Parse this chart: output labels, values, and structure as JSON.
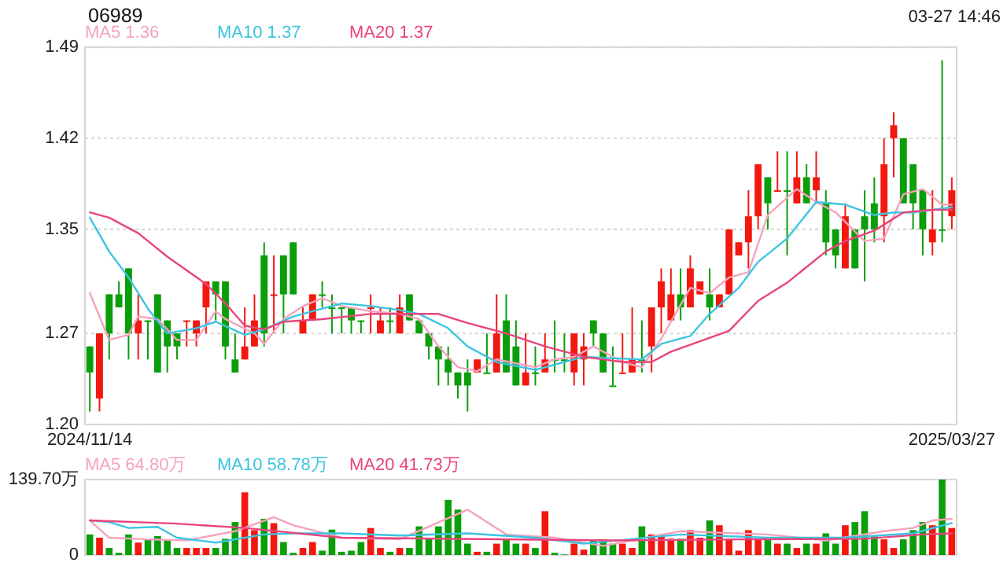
{
  "chart_data": [
    {
      "type": "candlestick",
      "title": "06989",
      "annotations": [
        "03-27 14:46"
      ],
      "legend": "top left",
      "grid": "y",
      "line_style": "solid",
      "categories": [
        "2024/11/14",
        null,
        null,
        null,
        null,
        null,
        null,
        null,
        null,
        null,
        null,
        null,
        null,
        null,
        null,
        null,
        null,
        null,
        null,
        null,
        null,
        null,
        null,
        null,
        null,
        null,
        null,
        null,
        null,
        null,
        null,
        null,
        null,
        null,
        null,
        null,
        null,
        null,
        null,
        null,
        null,
        null,
        null,
        null,
        null,
        null,
        null,
        null,
        null,
        null,
        null,
        null,
        null,
        null,
        null,
        null,
        null,
        null,
        null,
        null,
        null,
        null,
        null,
        null,
        null,
        null,
        null,
        null,
        null,
        null,
        null,
        null,
        null,
        null,
        null,
        null,
        null,
        null,
        null,
        null,
        null,
        null,
        null,
        null,
        null,
        null,
        null,
        null,
        null,
        "2025/03/27"
      ],
      "ohlc": [
        [
          1.26,
          1.26,
          1.21,
          1.24
        ],
        [
          1.22,
          1.27,
          1.21,
          1.27
        ],
        [
          1.3,
          1.3,
          1.25,
          1.27
        ],
        [
          1.3,
          1.31,
          1.29,
          1.29
        ],
        [
          1.32,
          1.32,
          1.25,
          1.27
        ],
        [
          1.27,
          1.3,
          1.25,
          1.28
        ],
        [
          1.28,
          1.28,
          1.25,
          1.28
        ],
        [
          1.3,
          1.3,
          1.24,
          1.24
        ],
        [
          1.28,
          1.28,
          1.24,
          1.26
        ],
        [
          1.27,
          1.27,
          1.25,
          1.26
        ],
        [
          1.28,
          1.28,
          1.26,
          1.28
        ],
        [
          1.27,
          1.28,
          1.26,
          1.28
        ],
        [
          1.29,
          1.31,
          1.27,
          1.31
        ],
        [
          1.31,
          1.31,
          1.28,
          1.3
        ],
        [
          1.31,
          1.31,
          1.25,
          1.26
        ],
        [
          1.25,
          1.27,
          1.24,
          1.24
        ],
        [
          1.25,
          1.29,
          1.25,
          1.26
        ],
        [
          1.26,
          1.3,
          1.26,
          1.28
        ],
        [
          1.33,
          1.34,
          1.26,
          1.27
        ],
        [
          1.3,
          1.33,
          1.27,
          1.3
        ],
        [
          1.33,
          1.33,
          1.27,
          1.3
        ],
        [
          1.34,
          1.34,
          1.3,
          1.3
        ],
        [
          1.27,
          1.29,
          1.27,
          1.28
        ],
        [
          1.28,
          1.3,
          1.28,
          1.3
        ],
        [
          1.3,
          1.31,
          1.29,
          1.3
        ],
        [
          1.29,
          1.3,
          1.27,
          1.29
        ],
        [
          1.29,
          1.29,
          1.27,
          1.29
        ],
        [
          1.29,
          1.29,
          1.27,
          1.28
        ],
        [
          1.28,
          1.28,
          1.27,
          1.28
        ],
        [
          1.29,
          1.3,
          1.27,
          1.29
        ],
        [
          1.27,
          1.29,
          1.27,
          1.28
        ],
        [
          1.28,
          1.29,
          1.27,
          1.28
        ],
        [
          1.27,
          1.3,
          1.27,
          1.29
        ],
        [
          1.3,
          1.3,
          1.28,
          1.28
        ],
        [
          1.28,
          1.28,
          1.27,
          1.27
        ],
        [
          1.27,
          1.27,
          1.25,
          1.26
        ],
        [
          1.26,
          1.26,
          1.23,
          1.25
        ],
        [
          1.25,
          1.26,
          1.23,
          1.24
        ],
        [
          1.24,
          1.24,
          1.22,
          1.23
        ],
        [
          1.24,
          1.25,
          1.21,
          1.23
        ],
        [
          1.24,
          1.25,
          1.24,
          1.25
        ],
        [
          1.24,
          1.27,
          1.24,
          1.24
        ],
        [
          1.24,
          1.3,
          1.24,
          1.27
        ],
        [
          1.28,
          1.3,
          1.24,
          1.24
        ],
        [
          1.26,
          1.28,
          1.23,
          1.23
        ],
        [
          1.23,
          1.27,
          1.23,
          1.24
        ],
        [
          1.24,
          1.26,
          1.23,
          1.24
        ],
        [
          1.24,
          1.27,
          1.24,
          1.25
        ],
        [
          1.25,
          1.28,
          1.24,
          1.25
        ],
        [
          1.25,
          1.27,
          1.24,
          1.25
        ],
        [
          1.24,
          1.27,
          1.23,
          1.27
        ],
        [
          1.25,
          1.27,
          1.23,
          1.26
        ],
        [
          1.28,
          1.28,
          1.26,
          1.27
        ],
        [
          1.27,
          1.27,
          1.24,
          1.24
        ],
        [
          1.23,
          1.26,
          1.23,
          1.23
        ],
        [
          1.24,
          1.27,
          1.24,
          1.24
        ],
        [
          1.24,
          1.29,
          1.24,
          1.25
        ],
        [
          1.25,
          1.28,
          1.24,
          1.25
        ],
        [
          1.26,
          1.29,
          1.24,
          1.29
        ],
        [
          1.29,
          1.32,
          1.27,
          1.31
        ],
        [
          1.28,
          1.32,
          1.28,
          1.3
        ],
        [
          1.3,
          1.32,
          1.28,
          1.29
        ],
        [
          1.29,
          1.33,
          1.29,
          1.32
        ],
        [
          1.3,
          1.31,
          1.3,
          1.31
        ],
        [
          1.3,
          1.32,
          1.28,
          1.29
        ],
        [
          1.29,
          1.3,
          1.29,
          1.3
        ],
        [
          1.3,
          1.35,
          1.3,
          1.35
        ],
        [
          1.33,
          1.34,
          1.33,
          1.34
        ],
        [
          1.34,
          1.38,
          1.32,
          1.36
        ],
        [
          1.36,
          1.4,
          1.35,
          1.4
        ],
        [
          1.39,
          1.39,
          1.35,
          1.37
        ],
        [
          1.38,
          1.41,
          1.38,
          1.38
        ],
        [
          1.38,
          1.41,
          1.33,
          1.38
        ],
        [
          1.37,
          1.41,
          1.37,
          1.39
        ],
        [
          1.39,
          1.4,
          1.37,
          1.37
        ],
        [
          1.38,
          1.41,
          1.37,
          1.39
        ],
        [
          1.37,
          1.38,
          1.33,
          1.34
        ],
        [
          1.35,
          1.35,
          1.32,
          1.33
        ],
        [
          1.32,
          1.37,
          1.32,
          1.36
        ],
        [
          1.35,
          1.35,
          1.32,
          1.32
        ],
        [
          1.36,
          1.38,
          1.31,
          1.35
        ],
        [
          1.37,
          1.39,
          1.34,
          1.35
        ],
        [
          1.36,
          1.42,
          1.34,
          1.4
        ],
        [
          1.42,
          1.44,
          1.39,
          1.43
        ],
        [
          1.42,
          1.42,
          1.37,
          1.37
        ],
        [
          1.4,
          1.4,
          1.35,
          1.37
        ],
        [
          1.38,
          1.38,
          1.33,
          1.35
        ],
        [
          1.34,
          1.38,
          1.33,
          1.35
        ],
        [
          1.35,
          1.48,
          1.34,
          1.35
        ],
        [
          1.36,
          1.39,
          1.35,
          1.38
        ]
      ],
      "colors": [
        "#0a9e0a",
        "#f2180f",
        "#0a9e0a",
        "#0a9e0a",
        "#0a9e0a",
        "#f2180f",
        "#0a9e0a",
        "#0a9e0a",
        "#0a9e0a",
        "#0a9e0a",
        "#f2180f",
        "#f2180f",
        "#f2180f",
        "#0a9e0a",
        "#0a9e0a",
        "#0a9e0a",
        "#f2180f",
        "#f2180f",
        "#0a9e0a",
        "#f2180f",
        "#0a9e0a",
        "#0a9e0a",
        "#f2180f",
        "#f2180f",
        "#0a9e0a",
        "#0a9e0a",
        "#0a9e0a",
        "#0a9e0a",
        "#0a9e0a",
        "#f2180f",
        "#f2180f",
        "#0a9e0a",
        "#f2180f",
        "#0a9e0a",
        "#0a9e0a",
        "#0a9e0a",
        "#0a9e0a",
        "#0a9e0a",
        "#0a9e0a",
        "#0a9e0a",
        "#f2180f",
        "#0a9e0a",
        "#f2180f",
        "#0a9e0a",
        "#0a9e0a",
        "#f2180f",
        "#0a9e0a",
        "#f2180f",
        "#0a9e0a",
        "#0a9e0a",
        "#f2180f",
        "#f2180f",
        "#0a9e0a",
        "#0a9e0a",
        "#0a9e0a",
        "#f2180f",
        "#f2180f",
        "#0a9e0a",
        "#f2180f",
        "#f2180f",
        "#f2180f",
        "#0a9e0a",
        "#f2180f",
        "#f2180f",
        "#0a9e0a",
        "#f2180f",
        "#f2180f",
        "#f2180f",
        "#f2180f",
        "#f2180f",
        "#0a9e0a",
        "#f2180f",
        "#0a9e0a",
        "#f2180f",
        "#0a9e0a",
        "#f2180f",
        "#0a9e0a",
        "#0a9e0a",
        "#f2180f",
        "#0a9e0a",
        "#0a9e0a",
        "#0a9e0a",
        "#f2180f",
        "#f2180f",
        "#0a9e0a",
        "#0a9e0a",
        "#0a9e0a",
        "#f2180f",
        "#0a9e0a",
        "#f2180f"
      ],
      "series": [
        {
          "name": "MA5 1.36",
          "type": "line",
          "color": "#f5a3bd",
          "values": [
            1.301,
            null,
            1.265,
            null,
            1.269,
            1.283,
            null,
            1.281,
            null,
            1.265,
            null,
            1.265,
            null,
            1.287,
            1.281,
            null,
            null,
            1.27,
            1.262,
            null,
            1.281,
            null,
            1.291,
            null,
            1.297,
            null,
            1.291,
            null,
            null,
            1.287,
            null,
            null,
            1.285,
            null,
            1.281,
            null,
            1.26,
            null,
            1.244,
            null,
            1.241,
            null,
            1.25,
            null,
            null,
            null,
            1.244,
            null,
            1.25,
            null,
            1.252,
            null,
            1.26,
            null,
            null,
            1.248,
            null,
            1.244,
            null,
            1.266,
            null,
            null,
            1.305,
            null,
            1.301,
            null,
            1.313,
            null,
            1.317,
            null,
            1.361,
            null,
            null,
            1.381,
            null,
            1.371,
            null,
            1.363,
            null,
            null,
            1.341,
            null,
            1.343,
            null,
            1.377,
            null,
            1.381,
            null,
            1.369,
            1.369
          ]
        },
        {
          "name": "MA10 1.37",
          "type": "line",
          "color": "#3cc4e0",
          "values": [
            1.359,
            null,
            1.333,
            null,
            1.313,
            null,
            1.289,
            null,
            1.27,
            null,
            null,
            1.274,
            null,
            1.279,
            null,
            null,
            1.269,
            null,
            1.273,
            null,
            null,
            1.283,
            null,
            null,
            1.289,
            null,
            1.293,
            null,
            null,
            1.291,
            null,
            null,
            1.288,
            null,
            1.285,
            null,
            null,
            1.274,
            null,
            1.26,
            null,
            null,
            1.248,
            null,
            null,
            null,
            1.242,
            null,
            1.246,
            null,
            null,
            1.252,
            null,
            null,
            1.251,
            null,
            null,
            1.25,
            null,
            1.262,
            null,
            null,
            1.268,
            null,
            1.285,
            null,
            null,
            1.305,
            null,
            1.325,
            null,
            null,
            1.343,
            null,
            null,
            1.371,
            null,
            null,
            1.369,
            null,
            null,
            1.361,
            null,
            1.363,
            null,
            1.363,
            null,
            null,
            null,
            1.367
          ]
        },
        {
          "name": "MA20 1.37",
          "type": "line",
          "color": "#e8457d",
          "values": [
            1.363,
            null,
            1.359,
            null,
            null,
            1.347,
            null,
            null,
            1.329,
            null,
            null,
            null,
            1.308,
            null,
            1.293,
            null,
            1.276,
            null,
            1.273,
            null,
            1.279,
            null,
            null,
            null,
            1.281,
            null,
            null,
            null,
            null,
            1.285,
            null,
            null,
            null,
            null,
            null,
            null,
            1.285,
            null,
            null,
            1.278,
            null,
            null,
            null,
            1.27,
            null,
            null,
            null,
            1.26,
            null,
            null,
            null,
            1.252,
            null,
            null,
            null,
            1.248,
            null,
            null,
            1.248,
            null,
            1.256,
            null,
            null,
            1.264,
            null,
            null,
            1.272,
            null,
            null,
            1.295,
            null,
            null,
            1.309,
            null,
            null,
            null,
            1.333,
            null,
            1.341,
            null,
            null,
            1.349,
            null,
            null,
            1.363,
            null,
            null,
            1.365,
            null,
            1.365
          ]
        }
      ],
      "ylim": [
        1.2,
        1.49
      ],
      "yticks": [
        {
          "value": 1.2,
          "label": "1.20"
        },
        1.27,
        1.35,
        1.42,
        1.49
      ]
    },
    {
      "type": "bar",
      "legend": "top left",
      "grid": "y",
      "tick_labels": "y",
      "line_style": "solid",
      "categories": [
        null,
        null,
        null,
        null,
        null,
        null,
        null,
        null,
        null,
        null,
        null,
        null,
        null,
        null,
        null,
        null,
        null,
        null,
        null,
        null,
        null,
        null,
        null,
        null,
        null,
        null,
        null,
        null,
        null,
        null,
        null,
        null,
        null,
        null,
        null,
        null,
        null,
        null,
        null,
        null,
        null,
        null,
        null,
        null,
        null,
        null,
        null,
        null,
        null,
        null,
        null,
        null,
        null,
        null,
        null,
        null,
        null,
        null,
        null,
        null,
        null,
        null,
        null,
        null,
        null,
        null,
        null,
        null,
        null,
        null,
        null,
        null,
        null,
        null,
        null,
        null,
        null,
        null,
        null,
        null,
        null,
        null,
        null,
        null,
        null,
        null,
        null,
        null,
        null,
        null
      ],
      "series": [
        {
          "type": "bar",
          "values": [
            38,
            32,
            13,
            4,
            38,
            23,
            30,
            35,
            29,
            13,
            13,
            13,
            13,
            13,
            30,
            61,
            116,
            46,
            67,
            59,
            24,
            4,
            13,
            24,
            8,
            47,
            6,
            8,
            24,
            50,
            13,
            6,
            13,
            13,
            53,
            32,
            53,
            102,
            84,
            21,
            6,
            6,
            21,
            29,
            21,
            21,
            13,
            81,
            4,
            1,
            21,
            10,
            29,
            29,
            21,
            21,
            13,
            53,
            38,
            38,
            30,
            30,
            46,
            32,
            64,
            55,
            30,
            8,
            46,
            29,
            29,
            21,
            21,
            13,
            21,
            21,
            40,
            21,
            55,
            61,
            81,
            35,
            29,
            13,
            29,
            46,
            61,
            55,
            139.7,
            50
          ],
          "colors": [
            "#0a9e0a",
            "#f2180f",
            "#0a9e0a",
            "#0a9e0a",
            "#0a9e0a",
            "#f2180f",
            "#0a9e0a",
            "#0a9e0a",
            "#0a9e0a",
            "#0a9e0a",
            "#f2180f",
            "#f2180f",
            "#f2180f",
            "#0a9e0a",
            "#0a9e0a",
            "#0a9e0a",
            "#f2180f",
            "#f2180f",
            "#0a9e0a",
            "#f2180f",
            "#0a9e0a",
            "#0a9e0a",
            "#f2180f",
            "#f2180f",
            "#0a9e0a",
            "#0a9e0a",
            "#0a9e0a",
            "#0a9e0a",
            "#0a9e0a",
            "#f2180f",
            "#f2180f",
            "#0a9e0a",
            "#f2180f",
            "#0a9e0a",
            "#0a9e0a",
            "#0a9e0a",
            "#0a9e0a",
            "#0a9e0a",
            "#0a9e0a",
            "#0a9e0a",
            "#f2180f",
            "#0a9e0a",
            "#f2180f",
            "#0a9e0a",
            "#0a9e0a",
            "#f2180f",
            "#0a9e0a",
            "#f2180f",
            "#0a9e0a",
            "#0a9e0a",
            "#f2180f",
            "#f2180f",
            "#0a9e0a",
            "#0a9e0a",
            "#0a9e0a",
            "#f2180f",
            "#f2180f",
            "#0a9e0a",
            "#f2180f",
            "#f2180f",
            "#f2180f",
            "#0a9e0a",
            "#f2180f",
            "#f2180f",
            "#0a9e0a",
            "#f2180f",
            "#f2180f",
            "#f2180f",
            "#f2180f",
            "#f2180f",
            "#0a9e0a",
            "#f2180f",
            "#0a9e0a",
            "#f2180f",
            "#0a9e0a",
            "#f2180f",
            "#0a9e0a",
            "#0a9e0a",
            "#f2180f",
            "#0a9e0a",
            "#0a9e0a",
            "#0a9e0a",
            "#f2180f",
            "#f2180f",
            "#0a9e0a",
            "#0a9e0a",
            "#0a9e0a",
            "#f2180f",
            "#0a9e0a",
            "#f2180f"
          ]
        },
        {
          "name": "MA5 64.80万",
          "type": "line",
          "color": "#f5a3bd",
          "values": [
            64,
            null,
            32,
            null,
            null,
            null,
            29,
            null,
            null,
            null,
            27,
            null,
            null,
            null,
            null,
            44,
            null,
            null,
            null,
            70,
            null,
            55,
            null,
            null,
            null,
            null,
            32,
            null,
            null,
            null,
            null,
            null,
            29,
            null,
            null,
            null,
            null,
            null,
            null,
            84,
            null,
            null,
            null,
            38,
            null,
            null,
            null,
            null,
            32,
            null,
            null,
            null,
            null,
            17,
            null,
            null,
            null,
            null,
            null,
            null,
            null,
            44,
            null,
            null,
            null,
            null,
            null,
            null,
            null,
            null,
            38,
            null,
            null,
            null,
            null,
            null,
            27,
            null,
            null,
            null,
            null,
            null,
            44,
            null,
            null,
            50,
            null,
            64,
            null,
            67
          ]
        },
        {
          "name": "MA10 58.78万",
          "type": "line",
          "color": "#3cc4e0",
          "values": [
            64,
            null,
            61,
            null,
            50,
            null,
            null,
            52,
            null,
            32,
            null,
            null,
            null,
            23,
            null,
            null,
            null,
            null,
            38,
            null,
            null,
            40,
            null,
            null,
            null,
            null,
            40,
            null,
            null,
            null,
            null,
            null,
            36,
            null,
            null,
            null,
            null,
            null,
            null,
            40,
            null,
            null,
            null,
            null,
            null,
            null,
            32,
            null,
            null,
            null,
            null,
            21,
            null,
            null,
            null,
            null,
            null,
            null,
            null,
            null,
            null,
            38,
            null,
            null,
            null,
            null,
            null,
            null,
            null,
            null,
            32,
            null,
            null,
            null,
            null,
            null,
            null,
            null,
            32,
            null,
            null,
            null,
            null,
            null,
            null,
            40,
            null,
            null,
            null,
            59
          ]
        },
        {
          "name": "MA20 41.73万",
          "type": "line",
          "color": "#e8457d",
          "values": [
            64,
            null,
            null,
            null,
            null,
            null,
            null,
            null,
            null,
            58,
            null,
            null,
            null,
            null,
            null,
            null,
            50,
            null,
            null,
            null,
            null,
            null,
            null,
            null,
            null,
            null,
            32,
            null,
            null,
            null,
            null,
            null,
            null,
            null,
            null,
            null,
            null,
            null,
            null,
            null,
            null,
            null,
            null,
            null,
            null,
            null,
            null,
            null,
            null,
            null,
            null,
            null,
            null,
            null,
            27,
            null,
            null,
            null,
            null,
            null,
            null,
            null,
            null,
            null,
            null,
            null,
            null,
            29,
            null,
            null,
            null,
            null,
            null,
            null,
            null,
            null,
            null,
            null,
            null,
            null,
            30,
            null,
            null,
            null,
            null,
            null,
            38,
            null,
            null,
            40
          ]
        }
      ],
      "ylim": [
        0,
        139.7
      ],
      "yticks": [
        0,
        {
          "value": 139.7,
          "label": "139.70万"
        }
      ]
    }
  ]
}
